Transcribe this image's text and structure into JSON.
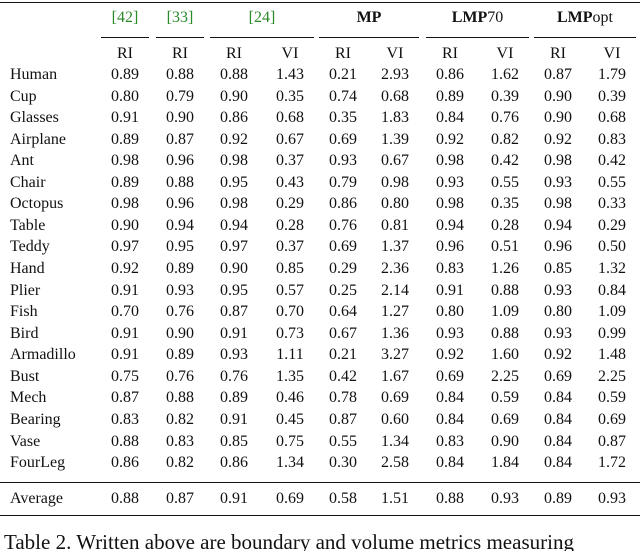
{
  "table": {
    "groups": [
      {
        "text": "[42]"
      },
      {
        "text": "[33]"
      },
      {
        "text": "[24]"
      },
      {
        "bold": "MP"
      },
      {
        "bold": "LMP",
        "text": "70"
      },
      {
        "bold": "LMP",
        "text": "opt"
      }
    ],
    "subheaders": [
      "RI",
      "RI",
      "RI",
      "VI",
      "RI",
      "VI",
      "RI",
      "VI",
      "RI",
      "VI"
    ],
    "rows": [
      [
        "Human",
        "0.89",
        "0.88",
        "0.88",
        "1.43",
        "0.21",
        "2.93",
        "0.86",
        "1.62",
        "0.87",
        "1.79"
      ],
      [
        "Cup",
        "0.80",
        "0.79",
        "0.90",
        "0.35",
        "0.74",
        "0.68",
        "0.89",
        "0.39",
        "0.90",
        "0.39"
      ],
      [
        "Glasses",
        "0.91",
        "0.90",
        "0.86",
        "0.68",
        "0.35",
        "1.83",
        "0.84",
        "0.76",
        "0.90",
        "0.68"
      ],
      [
        "Airplane",
        "0.89",
        "0.87",
        "0.92",
        "0.67",
        "0.69",
        "1.39",
        "0.92",
        "0.82",
        "0.92",
        "0.83"
      ],
      [
        "Ant",
        "0.98",
        "0.96",
        "0.98",
        "0.37",
        "0.93",
        "0.67",
        "0.98",
        "0.42",
        "0.98",
        "0.42"
      ],
      [
        "Chair",
        "0.89",
        "0.88",
        "0.95",
        "0.43",
        "0.79",
        "0.98",
        "0.93",
        "0.55",
        "0.93",
        "0.55"
      ],
      [
        "Octopus",
        "0.98",
        "0.96",
        "0.98",
        "0.29",
        "0.86",
        "0.80",
        "0.98",
        "0.35",
        "0.98",
        "0.33"
      ],
      [
        "Table",
        "0.90",
        "0.94",
        "0.94",
        "0.28",
        "0.76",
        "0.81",
        "0.94",
        "0.28",
        "0.94",
        "0.29"
      ],
      [
        "Teddy",
        "0.97",
        "0.95",
        "0.97",
        "0.37",
        "0.69",
        "1.37",
        "0.96",
        "0.51",
        "0.96",
        "0.50"
      ],
      [
        "Hand",
        "0.92",
        "0.89",
        "0.90",
        "0.85",
        "0.29",
        "2.36",
        "0.83",
        "1.26",
        "0.85",
        "1.32"
      ],
      [
        "Plier",
        "0.91",
        "0.93",
        "0.95",
        "0.57",
        "0.25",
        "2.14",
        "0.91",
        "0.88",
        "0.93",
        "0.84"
      ],
      [
        "Fish",
        "0.70",
        "0.76",
        "0.87",
        "0.70",
        "0.64",
        "1.27",
        "0.80",
        "1.09",
        "0.80",
        "1.09"
      ],
      [
        "Bird",
        "0.91",
        "0.90",
        "0.91",
        "0.73",
        "0.67",
        "1.36",
        "0.93",
        "0.88",
        "0.93",
        "0.99"
      ],
      [
        "Armadillo",
        "0.91",
        "0.89",
        "0.93",
        "1.11",
        "0.21",
        "3.27",
        "0.92",
        "1.60",
        "0.92",
        "1.48"
      ],
      [
        "Bust",
        "0.75",
        "0.76",
        "0.76",
        "1.35",
        "0.42",
        "1.67",
        "0.69",
        "2.25",
        "0.69",
        "2.25"
      ],
      [
        "Mech",
        "0.87",
        "0.88",
        "0.89",
        "0.46",
        "0.78",
        "0.69",
        "0.84",
        "0.59",
        "0.84",
        "0.59"
      ],
      [
        "Bearing",
        "0.83",
        "0.82",
        "0.91",
        "0.45",
        "0.87",
        "0.60",
        "0.84",
        "0.69",
        "0.84",
        "0.69"
      ],
      [
        "Vase",
        "0.88",
        "0.83",
        "0.85",
        "0.75",
        "0.55",
        "1.34",
        "0.83",
        "0.90",
        "0.84",
        "0.87"
      ],
      [
        "FourLeg",
        "0.86",
        "0.82",
        "0.86",
        "1.34",
        "0.30",
        "2.58",
        "0.84",
        "1.84",
        "0.84",
        "1.72"
      ]
    ],
    "average": [
      "Average",
      "0.88",
      "0.87",
      "0.91",
      "0.69",
      "0.58",
      "1.51",
      "0.88",
      "0.93",
      "0.89",
      "0.93"
    ]
  },
  "caption": "Table 2. Written above are boundary and volume metrics measuring"
}
